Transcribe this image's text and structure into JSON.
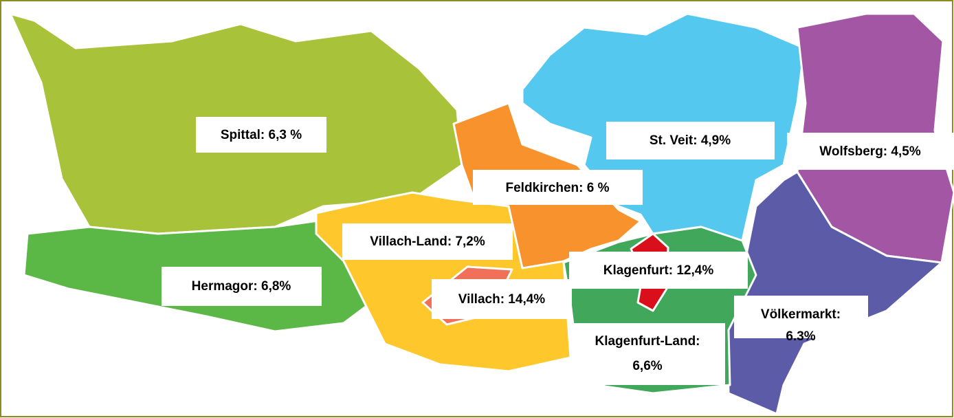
{
  "regions": [
    {
      "label": "Spittal: 6,3 %"
    },
    {
      "label": "St. Veit: 4,9%"
    },
    {
      "label": "Wolfsberg: 4,5%"
    },
    {
      "label": "Feldkirchen: 6 %"
    },
    {
      "label": "Villach-Land: 7,2%"
    },
    {
      "label": "Hermagor: 6,8%"
    },
    {
      "label": "Klagenfurt: 12,4%"
    },
    {
      "label": "Villach: 14,4%"
    },
    {
      "label": [
        "Völkermarkt:",
        "6.3%"
      ]
    },
    {
      "label": [
        "Klagenfurt-Land:",
        "6,6%"
      ]
    }
  ]
}
